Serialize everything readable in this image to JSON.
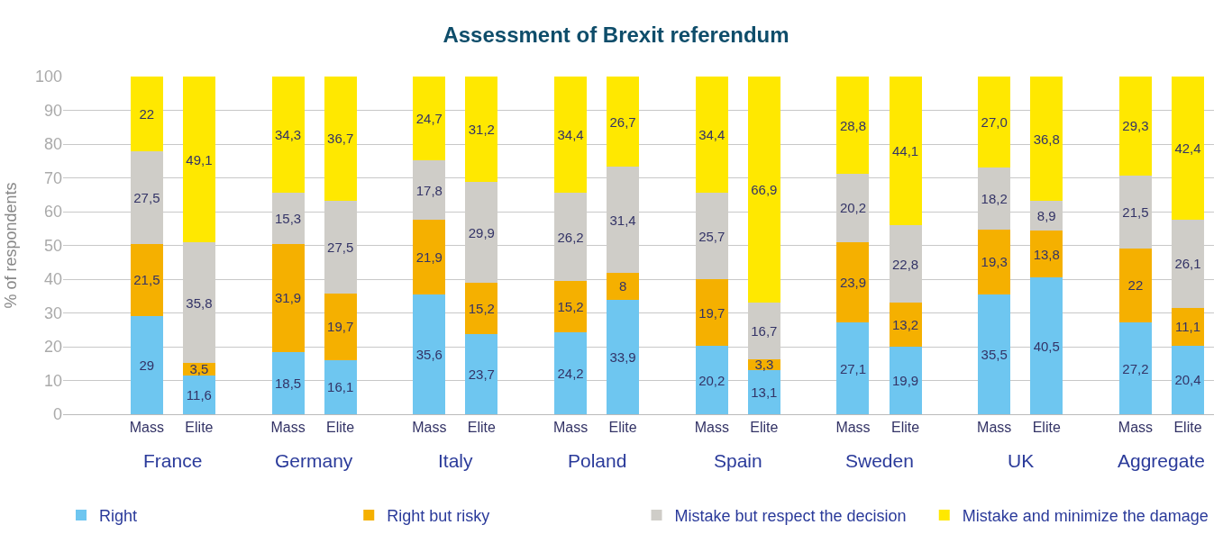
{
  "chart_data": {
    "type": "bar",
    "title": "Assessment of Brexit referendum",
    "ylabel": "% of respondents",
    "stacked": true,
    "categories": [
      "Mass",
      "Elite",
      "Mass",
      "Elite",
      "Mass",
      "Elite",
      "Mass",
      "Elite",
      "Mass",
      "Elite",
      "Mass",
      "Elite",
      "Mass",
      "Elite",
      "Mass",
      "Elite"
    ],
    "annotations": [
      "France",
      "Germany",
      "Italy",
      "Poland",
      "Spain",
      "Sweden",
      "UK",
      "Aggregate"
    ],
    "series": [
      {
        "name": "Right",
        "color": "#6ec6f0",
        "values": [
          29,
          11.6,
          18.5,
          16.1,
          35.6,
          23.7,
          24.2,
          33.9,
          20.2,
          13.1,
          27.1,
          19.9,
          35.5,
          40.5,
          27.2,
          20.4
        ],
        "value_labels": [
          "29",
          "11,6",
          "18,5",
          "16,1",
          "35,6",
          "23,7",
          "24,2",
          "33,9",
          "20,2",
          "13,1",
          "27,1",
          "19,9",
          "35,5",
          "40,5",
          "27,2",
          "20,4"
        ]
      },
      {
        "name": "Right but risky",
        "color": "#f5b000",
        "values": [
          21.5,
          3.5,
          31.9,
          19.7,
          21.9,
          15.2,
          15.2,
          8,
          19.7,
          3.3,
          23.9,
          13.2,
          19.3,
          13.8,
          22,
          11.1
        ],
        "value_labels": [
          "21,5",
          "3,5",
          "31,9",
          "19,7",
          "21,9",
          "15,2",
          "15,2",
          "8",
          "19,7",
          "3,3",
          "23,9",
          "13,2",
          "19,3",
          "13,8",
          "22",
          "11,1"
        ]
      },
      {
        "name": "Mistake but respect the decision",
        "color": "#cfcdc8",
        "values": [
          27.5,
          35.8,
          15.3,
          27.5,
          17.8,
          29.9,
          26.2,
          31.4,
          25.7,
          16.7,
          20.2,
          22.8,
          18.2,
          8.9,
          21.5,
          26.1
        ],
        "value_labels": [
          "27,5",
          "35,8",
          "15,3",
          "27,5",
          "17,8",
          "29,9",
          "26,2",
          "31,4",
          "25,7",
          "16,7",
          "20,2",
          "22,8",
          "18,2",
          "8,9",
          "21,5",
          "26,1"
        ]
      },
      {
        "name": "Mistake and minimize the damage",
        "color": "#ffe800",
        "values": [
          22,
          49.1,
          34.3,
          36.7,
          24.7,
          31.2,
          34.4,
          26.7,
          34.4,
          66.9,
          28.8,
          44.1,
          27.0,
          36.8,
          29.3,
          42.4
        ],
        "value_labels": [
          "22",
          "49,1",
          "34,3",
          "36,7",
          "24,7",
          "31,2",
          "34,4",
          "26,7",
          "34,4",
          "66,9",
          "28,8",
          "44,1",
          "27,0",
          "36,8",
          "29,3",
          "42,4"
        ]
      }
    ],
    "ylim": [
      0,
      100
    ],
    "yticks": [
      0,
      10,
      20,
      30,
      40,
      50,
      60,
      70,
      80,
      90,
      100
    ],
    "grid": "y",
    "legend": "bottom"
  }
}
